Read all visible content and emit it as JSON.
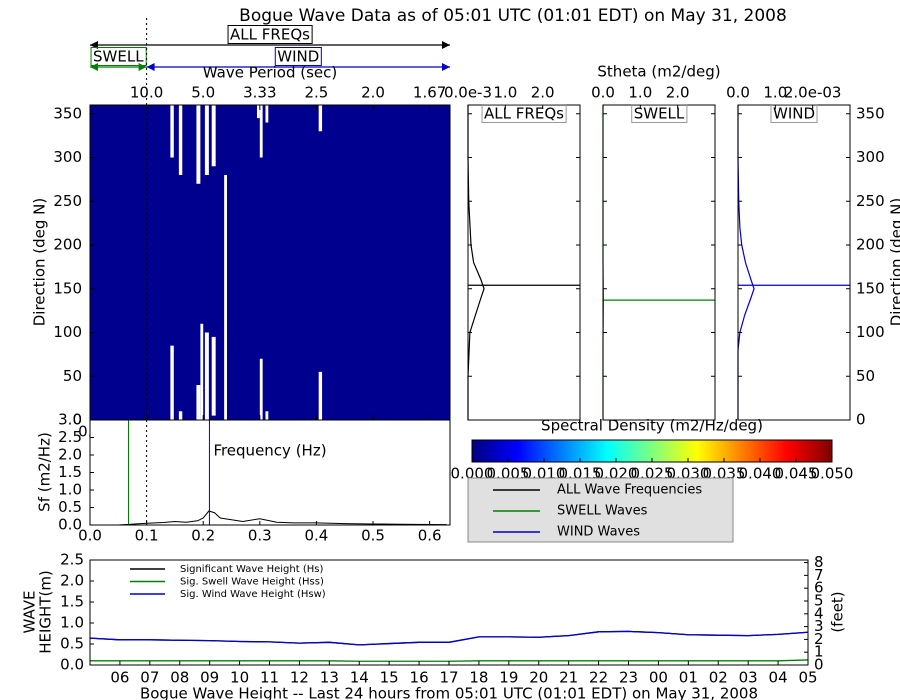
{
  "title": "Bogue Wave Data as of 05:01 UTC (01:01 EDT) on May 31, 2008",
  "bands": [
    {
      "label": "ALL FREQs",
      "range": [
        0,
        0.636
      ],
      "color": "#000000"
    },
    {
      "label": "SWELL",
      "range": [
        0,
        0.1
      ],
      "color": "#008000"
    },
    {
      "label": "WIND",
      "range": [
        0.1,
        0.636
      ],
      "color": "#0000cc"
    }
  ],
  "chart_data": [
    {
      "type": "heatmap",
      "x2label": "Wave Period (sec)",
      "ylabel": "Direction (deg N)",
      "xlim": [
        0,
        0.636
      ],
      "ylim": [
        0,
        360
      ],
      "xticks": [
        {
          "value": 0,
          "label": "0.0"
        },
        0.1,
        0.2,
        0.3,
        0.4,
        0.5,
        0.6
      ],
      "x2ticks": [
        {
          "value": 0.1,
          "label": "10.0"
        },
        {
          "value": 0.2,
          "label": "5.0"
        },
        {
          "value": 0.3,
          "label": "3.33"
        },
        {
          "value": 0.4,
          "label": "2.5"
        },
        {
          "value": 0.5,
          "label": "2.0"
        },
        {
          "value": 0.6,
          "label": "1.67"
        }
      ],
      "yticks": [
        0,
        50,
        100,
        150,
        200,
        250,
        300,
        350
      ],
      "background": "#00008f",
      "gap_color": "#ffffff",
      "marker_freq": 0.1,
      "gaps": [
        {
          "freq": [
            0.142,
            0.148
          ],
          "dir": [
            0,
            85
          ]
        },
        {
          "freq": [
            0.142,
            0.148
          ],
          "dir": [
            300,
            360
          ]
        },
        {
          "freq": [
            0.157,
            0.163
          ],
          "dir": [
            0,
            10
          ]
        },
        {
          "freq": [
            0.157,
            0.163
          ],
          "dir": [
            280,
            360
          ]
        },
        {
          "freq": [
            0.188,
            0.195
          ],
          "dir": [
            0,
            40
          ]
        },
        {
          "freq": [
            0.188,
            0.195
          ],
          "dir": [
            270,
            360
          ]
        },
        {
          "freq": [
            0.195,
            0.2
          ],
          "dir": [
            0,
            110
          ]
        },
        {
          "freq": [
            0.203,
            0.21
          ],
          "dir": [
            0,
            100
          ]
        },
        {
          "freq": [
            0.203,
            0.21
          ],
          "dir": [
            280,
            360
          ]
        },
        {
          "freq": [
            0.215,
            0.222
          ],
          "dir": [
            5,
            95
          ]
        },
        {
          "freq": [
            0.215,
            0.222
          ],
          "dir": [
            290,
            360
          ]
        },
        {
          "freq": [
            0.237,
            0.242
          ],
          "dir": [
            0,
            280
          ]
        },
        {
          "freq": [
            0.3,
            0.305
          ],
          "dir": [
            0,
            70
          ]
        },
        {
          "freq": [
            0.3,
            0.305
          ],
          "dir": [
            300,
            360
          ]
        },
        {
          "freq": [
            0.31,
            0.315
          ],
          "dir": [
            0,
            10
          ]
        },
        {
          "freq": [
            0.31,
            0.315
          ],
          "dir": [
            340,
            360
          ]
        },
        {
          "freq": [
            0.295,
            0.3
          ],
          "dir": [
            345,
            360
          ]
        },
        {
          "freq": [
            0.404,
            0.41
          ],
          "dir": [
            0,
            55
          ]
        },
        {
          "freq": [
            0.404,
            0.41
          ],
          "dir": [
            330,
            360
          ]
        }
      ]
    },
    {
      "type": "profile",
      "title": "ALL FREQs",
      "color": "#000000",
      "xlabel": "Stheta (m2/deg)",
      "xlim": [
        0,
        3
      ],
      "xticks": [
        {
          "value": 0,
          "label": "0.0e-3"
        },
        {
          "value": 1,
          "label": "1.0"
        },
        {
          "value": 2,
          "label": "2.0"
        }
      ],
      "ylim": [
        0,
        360
      ],
      "yticks": [
        0,
        50,
        100,
        150,
        200,
        250,
        300,
        350
      ],
      "ytick_labels": false,
      "directions": [
        0,
        50,
        100,
        120,
        140,
        150,
        160,
        180,
        200,
        250,
        300,
        360
      ],
      "values": [
        0,
        0,
        0.05,
        0.2,
        0.35,
        0.43,
        0.35,
        0.15,
        0.08,
        0.02,
        0,
        0
      ],
      "mean_direction": 154
    },
    {
      "type": "profile",
      "title": "SWELL",
      "color": "#008000",
      "xlim": [
        0,
        3
      ],
      "xticks": [
        {
          "value": 0,
          "label": "0.0"
        },
        {
          "value": 1,
          "label": "1.0"
        },
        {
          "value": 2,
          "label": "2.0"
        }
      ],
      "ylim": [
        0,
        360
      ],
      "yticks": [
        0,
        50,
        100,
        150,
        200,
        250,
        300,
        350
      ],
      "ytick_labels": false,
      "directions": [
        0,
        90,
        137,
        180,
        360
      ],
      "values": [
        0,
        0,
        0.01,
        0,
        0
      ],
      "mean_direction": 137
    },
    {
      "type": "profile",
      "title": "WIND",
      "color": "#0000cc",
      "ylabel": "Direction (deg N)",
      "xlim": [
        0,
        3
      ],
      "xticks": [
        {
          "value": 0,
          "label": "0.0"
        },
        {
          "value": 1,
          "label": "1.0"
        },
        {
          "value": 2,
          "label": "2.0e-03"
        }
      ],
      "ylim": [
        0,
        360
      ],
      "yticks": [
        0,
        50,
        100,
        150,
        200,
        250,
        300,
        350
      ],
      "ytick_labels": true,
      "directions": [
        0,
        80,
        100,
        120,
        140,
        150,
        160,
        180,
        200,
        220,
        250,
        300,
        360
      ],
      "values": [
        0,
        0,
        0.05,
        0.18,
        0.35,
        0.43,
        0.35,
        0.2,
        0.1,
        0.05,
        0.02,
        0,
        0
      ],
      "mean_direction": 154
    },
    {
      "type": "colorbar",
      "title": "Spectral Density (m2/Hz/deg)",
      "xlim": [
        0,
        0.05
      ],
      "xticks": [
        {
          "value": 0,
          "label": "0.000"
        },
        {
          "value": 0.005,
          "label": "0.005"
        },
        {
          "value": 0.01,
          "label": "0.010"
        },
        {
          "value": 0.015,
          "label": "0.015"
        },
        {
          "value": 0.02,
          "label": "0.020"
        },
        {
          "value": 0.025,
          "label": "0.025"
        },
        {
          "value": 0.03,
          "label": "0.030"
        },
        {
          "value": 0.035,
          "label": "0.035"
        },
        {
          "value": 0.04,
          "label": "0.040"
        },
        {
          "value": 0.045,
          "label": "0.045"
        },
        {
          "value": 0.05,
          "label": "0.050"
        }
      ],
      "colors": [
        "#00007f",
        "#0000ff",
        "#007fff",
        "#00ffff",
        "#7fff7f",
        "#ffff00",
        "#ff7f00",
        "#ff0000",
        "#7f0000"
      ]
    },
    {
      "type": "spectrum",
      "xlabel": "Frequency (Hz)",
      "ylabel": "Sf (m2/Hz)",
      "xlim": [
        0,
        0.636
      ],
      "ylim": [
        0,
        3
      ],
      "xticks": [
        {
          "value": 0,
          "label": "0.0"
        },
        0.1,
        0.2,
        0.3,
        0.4,
        0.5,
        0.6
      ],
      "yticks": [
        {
          "value": 0,
          "label": "0.0"
        },
        0.5,
        {
          "value": 1,
          "label": "1.0"
        },
        1.5,
        {
          "value": 2,
          "label": "2.0"
        },
        2.5,
        {
          "value": 3,
          "label": "3.0"
        }
      ],
      "name": "ALL Wave Frequencies",
      "color": "#000000",
      "marker_freq": 0.1,
      "x": [
        0.05,
        0.1,
        0.13,
        0.15,
        0.17,
        0.19,
        0.2,
        0.21,
        0.22,
        0.23,
        0.25,
        0.27,
        0.3,
        0.33,
        0.36,
        0.4,
        0.45,
        0.5,
        0.55,
        0.63
      ],
      "values": [
        0,
        0.05,
        0.07,
        0.1,
        0.08,
        0.12,
        0.2,
        0.4,
        0.35,
        0.2,
        0.15,
        0.1,
        0.18,
        0.08,
        0.06,
        0.06,
        0.04,
        0.03,
        0.02,
        0.01
      ],
      "vlines": [
        {
          "name": "SWELL Waves",
          "value": 0.068,
          "color": "#008000"
        },
        {
          "name": "WIND Waves",
          "value": 0.211,
          "color": "#0000cc"
        }
      ]
    },
    {
      "type": "line",
      "xlabel": "Bogue Wave Height -- Last 24 hours from 05:01 UTC (01:01 EDT) on May 31, 2008",
      "ylabel": [
        "WAVE",
        "HEIGHT(m)"
      ],
      "y2label": "(feet)",
      "categories": [
        null,
        "06",
        "07",
        "08",
        "09",
        "10",
        "11",
        "12",
        "13",
        "14",
        "15",
        "16",
        "17",
        "18",
        "19",
        "20",
        "21",
        "22",
        "23",
        "00",
        "01",
        "02",
        "03",
        "04",
        "05"
      ],
      "ylim": [
        0,
        2.5
      ],
      "yticks": [
        {
          "value": 0,
          "label": "0.0"
        },
        0.5,
        {
          "value": 1,
          "label": "1.0"
        },
        1.5,
        {
          "value": 2,
          "label": "2.0"
        },
        2.5
      ],
      "y2lim": [
        0,
        8.2
      ],
      "y2ticks": [
        0,
        1,
        2,
        3,
        4,
        5,
        6,
        7,
        8
      ],
      "series": [
        {
          "name": "Significant Wave Height (Hs)",
          "color": "#000000",
          "values": [
            0.64,
            0.6,
            0.6,
            0.59,
            0.58,
            0.56,
            0.55,
            0.52,
            0.54,
            0.48,
            0.51,
            0.54,
            0.54,
            0.67,
            0.67,
            0.66,
            0.7,
            0.79,
            0.8,
            0.77,
            0.72,
            0.71,
            0.7,
            0.73,
            0.78
          ]
        },
        {
          "name": "Sig. Swell Wave Height (Hss)",
          "color": "#008000",
          "values": [
            0.1,
            0.1,
            0.1,
            0.1,
            0.1,
            0.1,
            0.1,
            0.1,
            0.1,
            0.09,
            0.09,
            0.09,
            0.09,
            0.1,
            0.1,
            0.1,
            0.1,
            0.1,
            0.1,
            0.1,
            0.1,
            0.1,
            0.1,
            0.1,
            0.12
          ]
        },
        {
          "name": "Sig. Wind Wave Height (Hsw)",
          "color": "#0000cc",
          "values": [
            0.64,
            0.6,
            0.6,
            0.59,
            0.58,
            0.56,
            0.55,
            0.52,
            0.54,
            0.48,
            0.51,
            0.54,
            0.54,
            0.67,
            0.67,
            0.66,
            0.7,
            0.79,
            0.8,
            0.77,
            0.72,
            0.71,
            0.7,
            0.73,
            0.78
          ]
        }
      ]
    }
  ]
}
